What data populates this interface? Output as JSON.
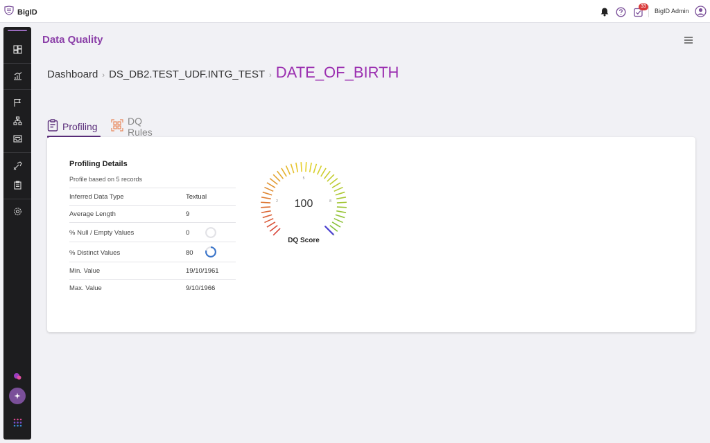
{
  "app": {
    "brand": "BigID"
  },
  "topbar": {
    "notification_count": "33",
    "user_name": "BigID Admin"
  },
  "page": {
    "title": "Data Quality",
    "breadcrumb": [
      "Dashboard",
      "DS_DB2.TEST_UDF.INTG_TEST"
    ],
    "current": "DATE_OF_BIRTH"
  },
  "tabs": [
    {
      "label": "Profiling",
      "active": true
    },
    {
      "label": "DQ Rules",
      "active": false
    }
  ],
  "profiling": {
    "title": "Profiling Details",
    "subtitle": "Profile based on 5 records",
    "rows": [
      {
        "label": "Inferred Data Type",
        "value": "Textual"
      },
      {
        "label": "Average Length",
        "value": "9"
      },
      {
        "label": "% Null / Empty Values",
        "value": "0",
        "ring": 0
      },
      {
        "label": "% Distinct Values",
        "value": "80",
        "ring": 80
      },
      {
        "label": "Min. Value",
        "value": "19/10/1961"
      },
      {
        "label": "Max. Value",
        "value": "9/10/1966"
      }
    ]
  },
  "gauge": {
    "score": "100",
    "label": "DQ Score",
    "score_value": 100,
    "tick_labels": [
      "2",
      "5",
      "8"
    ],
    "colors": {
      "low": "#d8443a",
      "mid": "#e8d22a",
      "high": "#7cbf3a",
      "needle": "#4a3fd0"
    }
  },
  "colors": {
    "accent": "#8b3fa8",
    "tab_active": "#5a2d7a",
    "sidebar": "#1d1d1f",
    "ring": "#3a74c9"
  }
}
